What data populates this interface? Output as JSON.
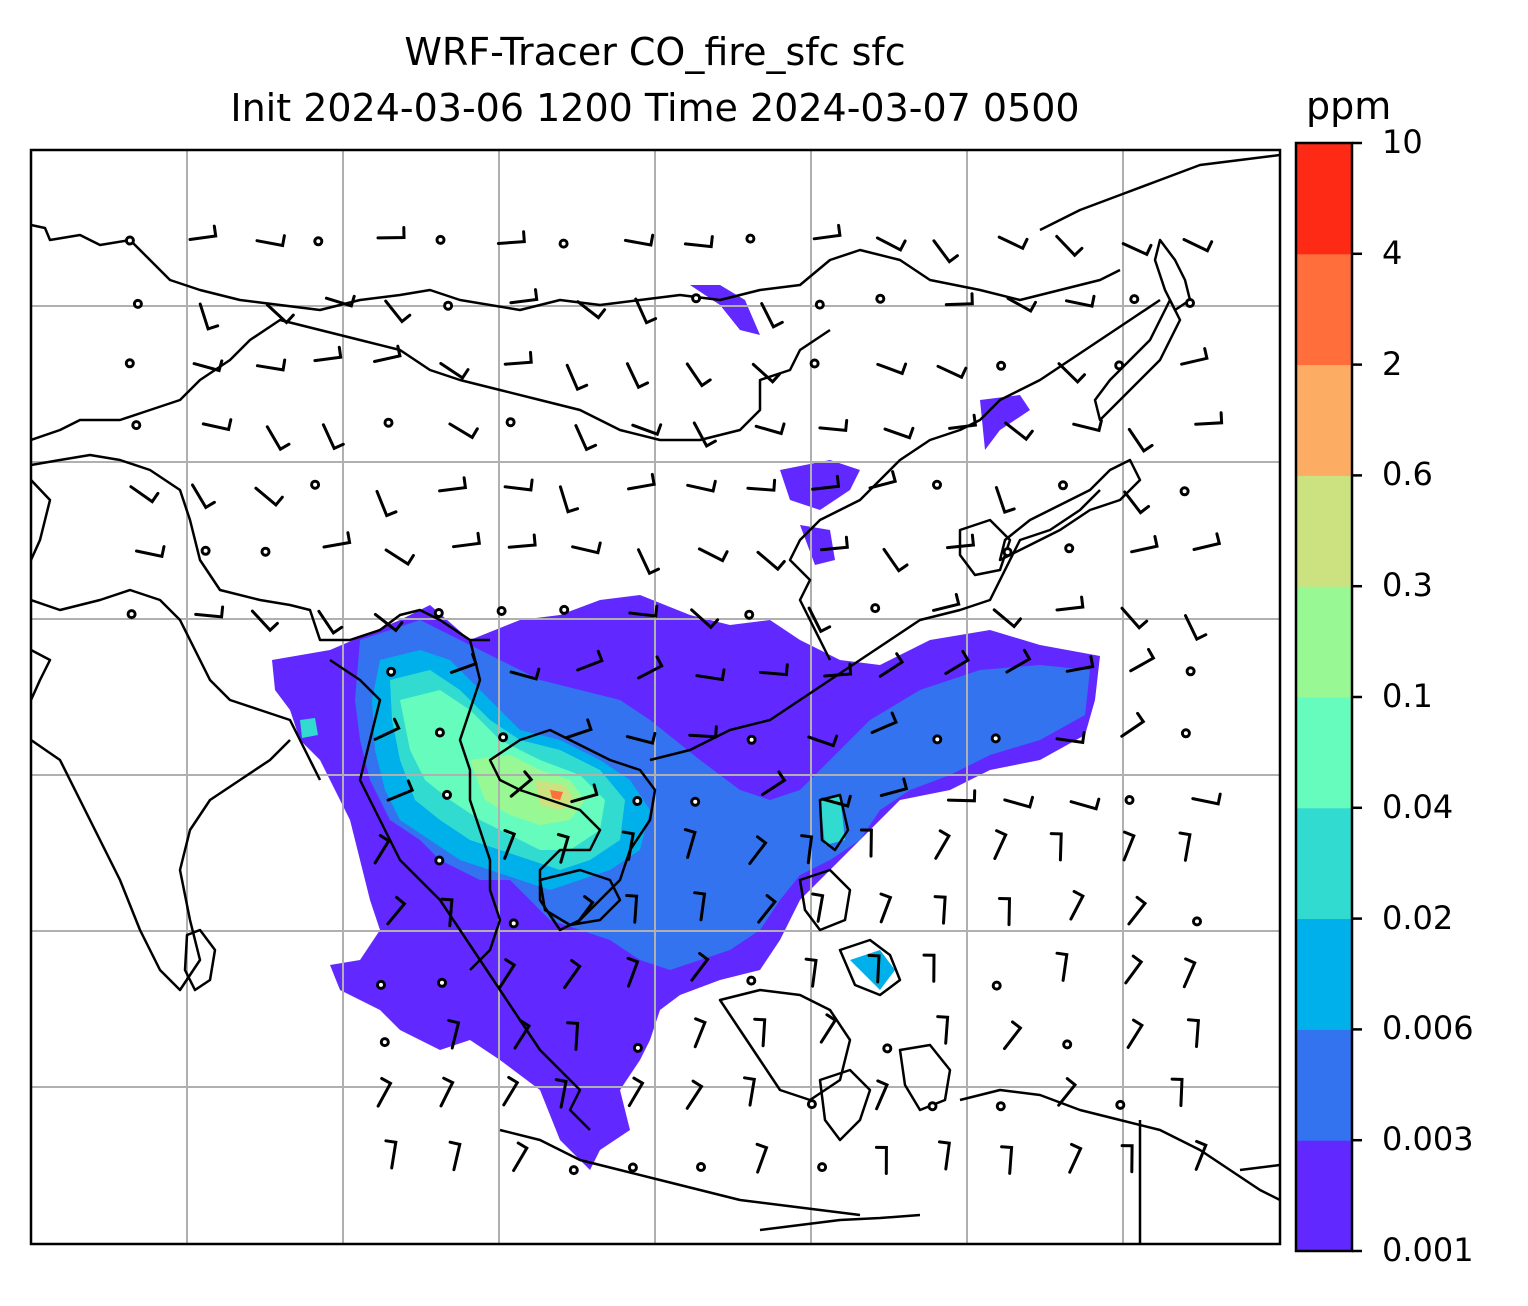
{
  "title_line1": "WRF-Tracer CO_fire_sfc sfc",
  "title_line2": "Init 2024-03-06 1200 Time 2024-03-07 0500",
  "colorbar": {
    "unit": "ppm",
    "levels": [
      "0.001",
      "0.003",
      "0.006",
      "0.02",
      "0.04",
      "0.1",
      "0.3",
      "0.6",
      "2",
      "4",
      "10"
    ],
    "colors": [
      "#6129ff",
      "#3373f0",
      "#00b0eb",
      "#31dbcf",
      "#66fcbe",
      "#98f994",
      "#cce17f",
      "#fdac63",
      "#ff6e3b",
      "#ff2a16"
    ]
  },
  "map": {
    "gridline_color": "#b0b0b0",
    "coastline_color": "#000000",
    "wind_barb_color": "#000000",
    "calm_symbol": "circle"
  }
}
